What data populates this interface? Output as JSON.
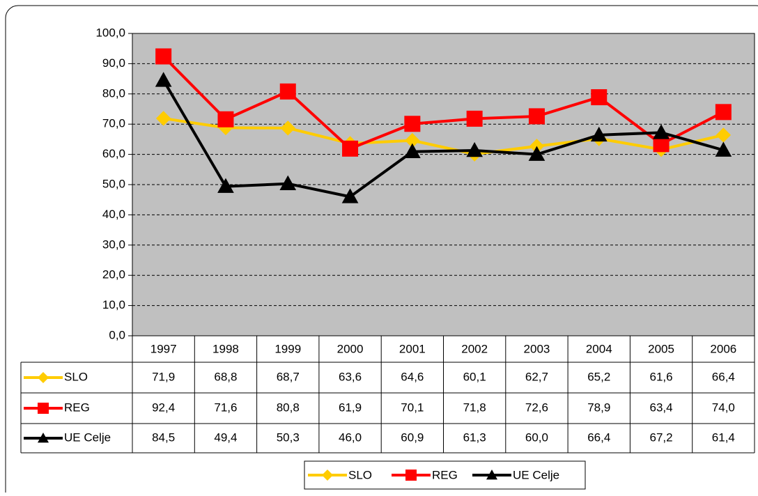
{
  "chart_data": {
    "type": "line",
    "categories": [
      "1997",
      "1998",
      "1999",
      "2000",
      "2001",
      "2002",
      "2003",
      "2004",
      "2005",
      "2006"
    ],
    "series": [
      {
        "name": "SLO",
        "color": "#ffcc00",
        "marker": "diamond",
        "values": [
          71.9,
          68.8,
          68.7,
          63.6,
          64.6,
          60.1,
          62.7,
          65.2,
          61.6,
          66.4
        ],
        "value_labels": [
          "71,9",
          "68,8",
          "68,7",
          "63,6",
          "64,6",
          "60,1",
          "62,7",
          "65,2",
          "61,6",
          "66,4"
        ]
      },
      {
        "name": "REG",
        "color": "#ff0000",
        "marker": "square",
        "values": [
          92.4,
          71.6,
          80.8,
          61.9,
          70.1,
          71.8,
          72.6,
          78.9,
          63.4,
          74.0
        ],
        "value_labels": [
          "92,4",
          "71,6",
          "80,8",
          "61,9",
          "70,1",
          "71,8",
          "72,6",
          "78,9",
          "63,4",
          "74,0"
        ]
      },
      {
        "name": "UE Celje",
        "color": "#000000",
        "marker": "triangle",
        "values": [
          84.5,
          49.4,
          50.3,
          46.0,
          60.9,
          61.3,
          60.0,
          66.4,
          67.2,
          61.4
        ],
        "value_labels": [
          "84,5",
          "49,4",
          "50,3",
          "46,0",
          "60,9",
          "61,3",
          "60,0",
          "66,4",
          "67,2",
          "61,4"
        ]
      }
    ],
    "ylim": [
      0,
      100
    ],
    "yticks": [
      {
        "value": 0,
        "label": "0,0"
      },
      {
        "value": 10,
        "label": "10,0"
      },
      {
        "value": 20,
        "label": "20,0"
      },
      {
        "value": 30,
        "label": "30,0"
      },
      {
        "value": 40,
        "label": "40,0"
      },
      {
        "value": 50,
        "label": "50,0"
      },
      {
        "value": 60,
        "label": "60,0"
      },
      {
        "value": 70,
        "label": "70,0"
      },
      {
        "value": 80,
        "label": "80,0"
      },
      {
        "value": 90,
        "label": "90,0"
      },
      {
        "value": 100,
        "label": "100,0"
      }
    ],
    "grid": true,
    "plot_background": "#c0c0c0",
    "legend": "bottom"
  }
}
